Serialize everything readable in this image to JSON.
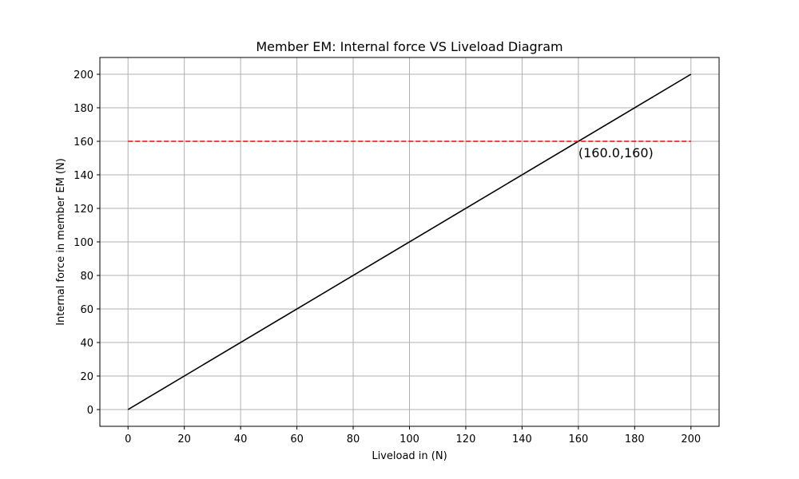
{
  "chart_data": {
    "type": "line",
    "title": "Member EM: Internal force VS Liveload Diagram",
    "xlabel": "Liveload in (N)",
    "ylabel": "Internal force in member EM (N)",
    "xlim": [
      -10,
      210
    ],
    "ylim": [
      -10,
      210
    ],
    "xticks": [
      0,
      20,
      40,
      60,
      80,
      100,
      120,
      140,
      160,
      180,
      200
    ],
    "yticks": [
      0,
      20,
      40,
      60,
      80,
      100,
      120,
      140,
      160,
      180,
      200
    ],
    "grid": true,
    "series": [
      {
        "x": [
          0,
          200
        ],
        "y": [
          0,
          200
        ],
        "color": "#000000",
        "style": "solid"
      },
      {
        "x": [
          0,
          200
        ],
        "y": [
          160,
          160
        ],
        "color": "#ff0000",
        "style": "dashed"
      }
    ],
    "annotations": [
      {
        "text": "(160.0,160)",
        "x": 160,
        "y": 160
      }
    ],
    "colors": {
      "grid": "#b0b0b0",
      "axes": "#000000"
    }
  }
}
